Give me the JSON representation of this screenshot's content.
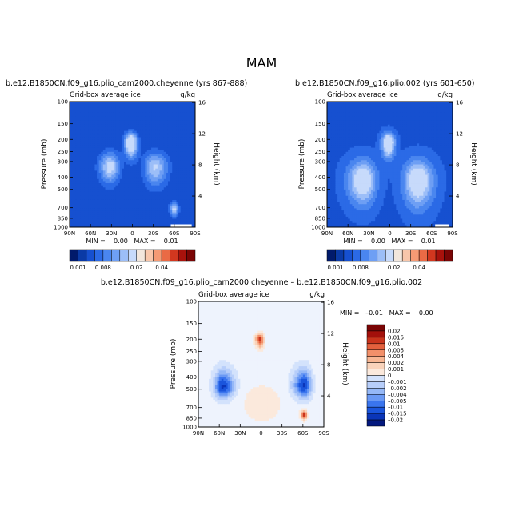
{
  "page": {
    "title": "MAM"
  },
  "colors": {
    "abs_levels": [
      "#011a6b",
      "#0a3aa6",
      "#1650d0",
      "#2b6ae6",
      "#4a86ef",
      "#6e9ff4",
      "#9cbef8",
      "#c7dafb",
      "#f2e6dc",
      "#f8c6aa",
      "#f59a74",
      "#ea6a45",
      "#d2371f",
      "#a8120c",
      "#7a0505"
    ],
    "diff_levels": [
      "#03187e",
      "#0a35b8",
      "#1a55dc",
      "#3a75ee",
      "#6a99f4",
      "#95b8f7",
      "#b7cefa",
      "#d3e2fc",
      "#eef3fd",
      "#fbe9dc",
      "#f9d3bb",
      "#f7b693",
      "#f2906a",
      "#e4603d",
      "#c9331c",
      "#a3100b",
      "#7a0505"
    ]
  },
  "chart_data": [
    {
      "id": "panel-a",
      "type": "heatmap",
      "title": "b.e12.B1850CN.f09_g16.plio_cam2000.cheyenne (yrs 867-888)",
      "subtitle_left": "Grid-box average ice",
      "subtitle_right": "g/kg",
      "ylabel": "Pressure (mb)",
      "ylabel_right": "Height (km)",
      "x_ticks": [
        "90N",
        "60N",
        "30N",
        "0",
        "30S",
        "60S",
        "90S"
      ],
      "x_range": [
        90,
        -90
      ],
      "y_ticks": [
        "100",
        "150",
        "200",
        "250",
        "300",
        "400",
        "500",
        "700",
        "850",
        "1000"
      ],
      "y_tick_values": [
        100,
        150,
        200,
        250,
        300,
        400,
        500,
        700,
        850,
        1000
      ],
      "y_range": [
        100,
        1000
      ],
      "y_scale": "log",
      "height_ticks": [
        "16",
        "12",
        "8",
        "4"
      ],
      "height_tick_km": [
        16,
        12,
        8,
        4
      ],
      "stats": "MIN =    0.00   MAX =    0.01",
      "colorbar": {
        "orientation": "horizontal",
        "labels": [
          "0.001",
          "0.008",
          "0.02",
          "0.04"
        ],
        "label_positions": [
          0,
          3,
          7,
          10
        ]
      },
      "features": [
        {
          "lat": 2,
          "p": 210,
          "rl": 9,
          "rr": 9,
          "rup": 0.16,
          "rdn": 0.28,
          "amp": 0.78
        },
        {
          "lat": 32,
          "p": 330,
          "rl": 15,
          "rr": 13,
          "rup": 0.25,
          "rdn": 0.3,
          "amp": 0.55
        },
        {
          "lat": -32,
          "p": 330,
          "rl": 15,
          "rr": 18,
          "rup": 0.25,
          "rdn": 0.35,
          "amp": 0.5
        },
        {
          "lat": -60,
          "p": 720,
          "rl": 6,
          "rr": 6,
          "rup": 0.12,
          "rdn": 0.12,
          "amp": 0.55
        }
      ],
      "base_level": 0.22,
      "gap_lat": [
        -55,
        -85
      ]
    },
    {
      "id": "panel-b",
      "type": "heatmap",
      "title": "b.e12.B1850CN.f09_g16.plio.002 (yrs 601-650)",
      "subtitle_left": "Grid-box average ice",
      "subtitle_right": "g/kg",
      "ylabel": "Pressure (mb)",
      "ylabel_right": "Height (km)",
      "x_ticks": [
        "90N",
        "60N",
        "30N",
        "0",
        "30S",
        "60S",
        "90S"
      ],
      "x_range": [
        90,
        -90
      ],
      "y_ticks": [
        "100",
        "150",
        "200",
        "250",
        "300",
        "400",
        "500",
        "700",
        "850",
        "1000"
      ],
      "y_tick_values": [
        100,
        150,
        200,
        250,
        300,
        400,
        500,
        700,
        850,
        1000
      ],
      "y_range": [
        100,
        1000
      ],
      "y_scale": "log",
      "height_ticks": [
        "16",
        "12",
        "8",
        "4"
      ],
      "height_tick_km": [
        16,
        12,
        8,
        4
      ],
      "stats": "MIN =    0.00   MAX =    0.01",
      "colorbar": {
        "orientation": "horizontal",
        "labels": [
          "0.001",
          "0.008",
          "0.02",
          "0.04"
        ],
        "label_positions": [
          0,
          3,
          7,
          10
        ]
      },
      "features": [
        {
          "lat": 2,
          "p": 210,
          "rl": 9,
          "rr": 9,
          "rup": 0.16,
          "rdn": 0.28,
          "amp": 0.72
        },
        {
          "lat": 38,
          "p": 420,
          "rl": 22,
          "rr": 18,
          "rup": 0.35,
          "rdn": 0.45,
          "amp": 0.6
        },
        {
          "lat": -40,
          "p": 420,
          "rl": 20,
          "rr": 22,
          "rup": 0.35,
          "rdn": 0.5,
          "amp": 0.62
        }
      ],
      "base_level": 0.28,
      "gap_lat": [
        -65,
        -85
      ]
    },
    {
      "id": "panel-c",
      "type": "heatmap",
      "title": "b.e12.B1850CN.f09_g16.plio_cam2000.cheyenne – b.e12.B1850CN.f09_g16.plio.002",
      "subtitle_left": "Grid-box average ice",
      "subtitle_right": "g/kg",
      "ylabel": "Pressure (mb)",
      "ylabel_right": "Height (km)",
      "x_ticks": [
        "90N",
        "60N",
        "30N",
        "0",
        "30S",
        "60S",
        "90S"
      ],
      "x_range": [
        90,
        -90
      ],
      "y_ticks": [
        "100",
        "150",
        "200",
        "250",
        "300",
        "400",
        "500",
        "700",
        "850",
        "1000"
      ],
      "y_tick_values": [
        100,
        150,
        200,
        250,
        300,
        400,
        500,
        700,
        850,
        1000
      ],
      "y_range": [
        100,
        1000
      ],
      "y_scale": "log",
      "height_ticks": [
        "16",
        "12",
        "8",
        "4"
      ],
      "height_tick_km": [
        16,
        12,
        8,
        4
      ],
      "stats": "MIN =   –0.01   MAX =    0.00",
      "colorbar": {
        "orientation": "vertical",
        "labels": [
          "0.02",
          "0.015",
          "0.01",
          "0.005",
          "0.004",
          "0.002",
          "0.001",
          "0",
          "–0.001",
          "–0.002",
          "–0.004",
          "–0.005",
          "–0.01",
          "–0.015",
          "–0.02"
        ]
      },
      "features": [
        {
          "lat": 2,
          "p": 200,
          "rl": 6,
          "rr": 6,
          "rup": 0.1,
          "rdn": 0.15,
          "amp": 0.38
        },
        {
          "lat": -62,
          "p": 800,
          "rl": 5,
          "rr": 4,
          "rup": 0.08,
          "rdn": 0.08,
          "amp": 0.4
        },
        {
          "lat": 55,
          "p": 480,
          "rl": 12,
          "rr": 16,
          "rup": 0.3,
          "rdn": 0.2,
          "amp": -0.42
        },
        {
          "lat": -62,
          "p": 470,
          "rl": 16,
          "rr": 10,
          "rup": 0.3,
          "rdn": 0.22,
          "amp": -0.42
        },
        {
          "lat": 0,
          "p": 650,
          "rl": 30,
          "rr": 35,
          "rup": 0.4,
          "rdn": 0.4,
          "amp": 0.06
        }
      ],
      "base_level": 0.0
    }
  ]
}
